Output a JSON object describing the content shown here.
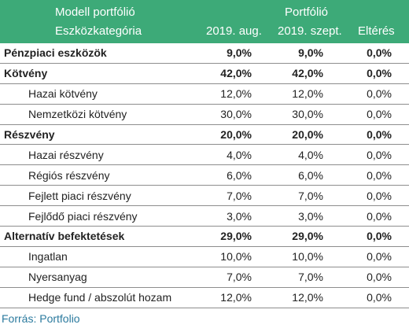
{
  "header": {
    "title_left": "Modell portfólió",
    "title_right": "Portfólió",
    "col_category": "Eszközkategória",
    "col_aug": "2019. aug.",
    "col_sep": "2019. szept.",
    "col_diff": "Eltérés"
  },
  "rows": [
    {
      "label": "Pénzpiaci eszközök",
      "aug": "9,0%",
      "sep": "9,0%",
      "diff": "0,0%",
      "bold": true
    },
    {
      "label": "Kötvény",
      "aug": "42,0%",
      "sep": "42,0%",
      "diff": "0,0%",
      "bold": true
    },
    {
      "label": "Hazai kötvény",
      "aug": "12,0%",
      "sep": "12,0%",
      "diff": "0,0%",
      "bold": false
    },
    {
      "label": "Nemzetközi kötvény",
      "aug": "30,0%",
      "sep": "30,0%",
      "diff": "0,0%",
      "bold": false
    },
    {
      "label": "Részvény",
      "aug": "20,0%",
      "sep": "20,0%",
      "diff": "0,0%",
      "bold": true
    },
    {
      "label": "Hazai részvény",
      "aug": "4,0%",
      "sep": "4,0%",
      "diff": "0,0%",
      "bold": false
    },
    {
      "label": "Régiós részvény",
      "aug": "6,0%",
      "sep": "6,0%",
      "diff": "0,0%",
      "bold": false
    },
    {
      "label": "Fejlett piaci részvény",
      "aug": "7,0%",
      "sep": "7,0%",
      "diff": "0,0%",
      "bold": false
    },
    {
      "label": "Fejlődő piaci részvény",
      "aug": "3,0%",
      "sep": "3,0%",
      "diff": "0,0%",
      "bold": false
    },
    {
      "label": "Alternatív befektetések",
      "aug": "29,0%",
      "sep": "29,0%",
      "diff": "0,0%",
      "bold": true
    },
    {
      "label": "Ingatlan",
      "aug": "10,0%",
      "sep": "10,0%",
      "diff": "0,0%",
      "bold": false
    },
    {
      "label": "Nyersanyag",
      "aug": "7,0%",
      "sep": "7,0%",
      "diff": "0,0%",
      "bold": false
    },
    {
      "label": "Hedge fund / abszolút hozam",
      "aug": "12,0%",
      "sep": "12,0%",
      "diff": "0,0%",
      "bold": false
    }
  ],
  "source": "Forrás: Portfolio",
  "colors": {
    "header_bg": "#3daa78",
    "header_text": "#ffffff",
    "source_text": "#2b7a9e"
  }
}
